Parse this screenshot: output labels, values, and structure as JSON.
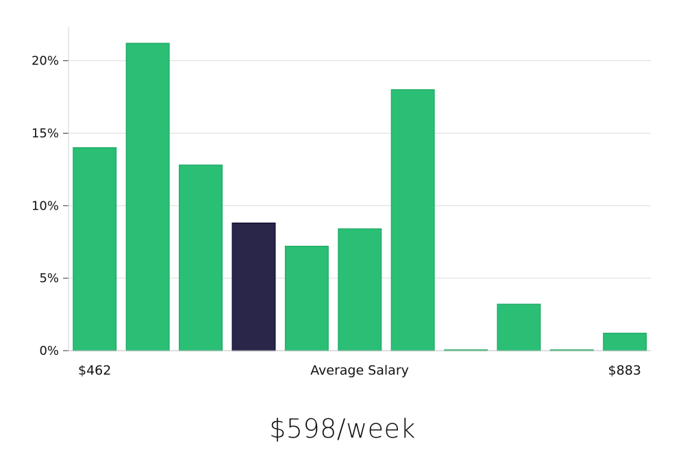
{
  "headline": "$598/week",
  "chart_data": {
    "type": "bar",
    "title": "",
    "xlabel": "Average Salary",
    "ylabel": "",
    "x_range_labels": {
      "min": "$462",
      "max": "$883"
    },
    "y_ticks": [
      {
        "value": 0,
        "label": "0%"
      },
      {
        "value": 5,
        "label": "5%"
      },
      {
        "value": 10,
        "label": "10%"
      },
      {
        "value": 15,
        "label": "15%"
      },
      {
        "value": 20,
        "label": "20%"
      }
    ],
    "ylim": [
      0,
      22.3
    ],
    "grid": true,
    "values": [
      14.0,
      21.2,
      12.8,
      8.8,
      7.2,
      8.4,
      18.0,
      0.05,
      3.2,
      0.05,
      1.2
    ],
    "highlight_index": 3,
    "colors": {
      "bar": "#2bbf76",
      "bar_stroke": "#21ad68",
      "highlight": "#29264a",
      "highlight_stroke": "#16143a",
      "grid": "#dcdcdc",
      "axis": "#cfcfcf"
    }
  }
}
